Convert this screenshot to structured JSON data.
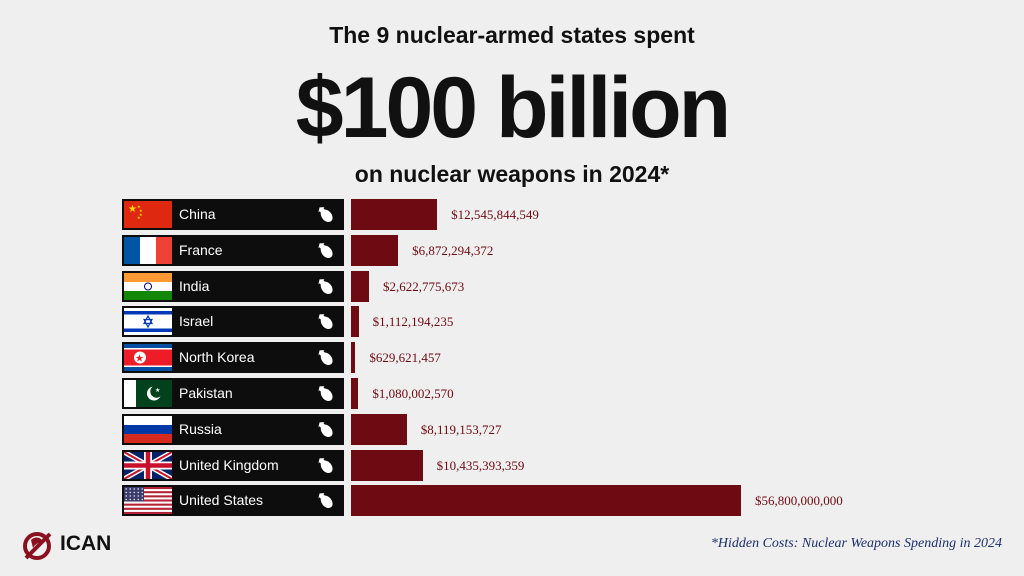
{
  "header": {
    "line1": "The 9 nuclear-armed states spent",
    "line2": "$100 billion",
    "line3": "on nuclear weapons in 2024*"
  },
  "footnote": "*Hidden Costs: Nuclear Weapons Spending in 2024",
  "logo": {
    "text": "ICAN"
  },
  "colors": {
    "bar": "#6e0a12",
    "label_bg": "#0d0d0d",
    "background": "#efefef",
    "footnote": "#1b2f6b"
  },
  "chart_data": {
    "type": "bar",
    "orientation": "horizontal",
    "categories": [
      "China",
      "France",
      "India",
      "Israel",
      "North Korea",
      "Pakistan",
      "Russia",
      "United Kingdom",
      "United States"
    ],
    "values": [
      12545844549,
      6872294372,
      2622775673,
      1112194235,
      629621457,
      1080002570,
      8119153727,
      10435393359,
      56800000000
    ],
    "value_labels": [
      "$12,545,844,549",
      "$6,872,294,372",
      "$2,622,775,673",
      "$1,112,194,235",
      "$629,621,457",
      "$1,080,002,570",
      "$8,119,153,727",
      "$10,435,393,359",
      "$56,800,000,000"
    ],
    "flag_icons": [
      "china-flag",
      "france-flag",
      "india-flag",
      "israel-flag",
      "north-korea-flag",
      "pakistan-flag",
      "russia-flag",
      "uk-flag",
      "usa-flag"
    ],
    "row_icon": "bomb-icon",
    "title": "",
    "xlabel": "",
    "ylabel": ""
  }
}
